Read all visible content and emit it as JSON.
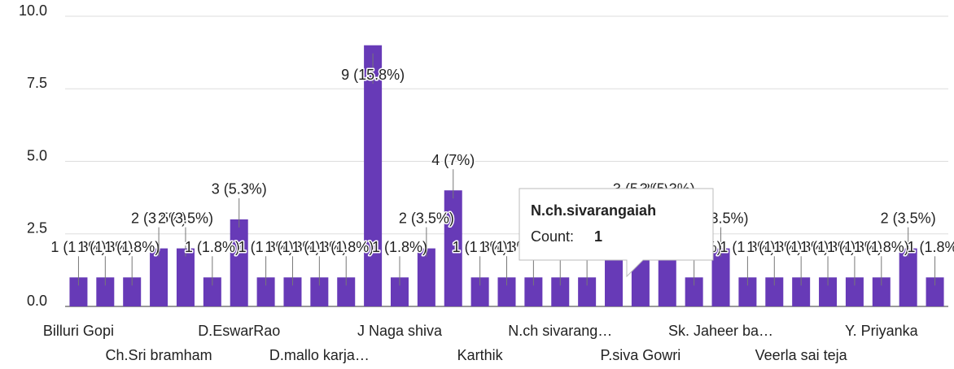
{
  "chart_data": {
    "type": "bar",
    "categories": [
      "Billuri Gopi",
      null,
      null,
      "Ch.Sri bramham",
      null,
      null,
      "D.EswarRao",
      null,
      null,
      "D.mallo karja…",
      null,
      null,
      "J Naga shiva",
      null,
      null,
      "Karthik",
      null,
      null,
      "N.ch sivarang…",
      null,
      null,
      "P.siva Gowri",
      null,
      null,
      "Sk. Jaheer ba…",
      null,
      null,
      "Veerla sai teja",
      null,
      null,
      "Y. Priyanka",
      null,
      null
    ],
    "values": [
      1,
      1,
      1,
      2,
      2,
      1,
      3,
      1,
      1,
      1,
      1,
      9,
      1,
      2,
      4,
      1,
      1,
      1,
      1,
      1,
      2,
      3,
      3,
      1,
      2,
      1,
      1,
      1,
      1,
      1,
      1,
      2,
      1
    ],
    "value_labels": [
      "1 (1.8%)",
      "1 (1.8%)",
      "1 (1.8%)",
      "2 (3.5%)",
      "2 (3.5%)",
      "1 (1.8%)",
      "3 (5.3%)",
      "1 (1.8%)",
      "1 (1.8%)",
      "1 (1.8%)",
      "1 (1.8%)",
      "9 (15.8%)",
      "1 (1.8%)",
      "2 (3.5%)",
      "4 (7%)",
      "1 (1.8%)",
      "1 (1.8%)",
      "1 (1.8%)",
      "1 (1.8%)",
      "1 (1.8%)",
      "2 (3.5%)",
      "3 (5.3%)",
      "3 (5.3%)",
      "1 (1.8%)",
      "2 (3.5%)",
      "1 (1.8%)",
      "1 (1.8%)",
      "1 (1.8%)",
      "1 (1.8%)",
      "1 (1.8%)",
      "1 (1.8%)",
      "2 (3.5%)",
      "1 (1.8%)"
    ],
    "color": "#673ab7",
    "ylim": [
      0,
      10
    ],
    "yticks": [
      {
        "value": 0,
        "label": "0.0"
      },
      {
        "value": 2.5,
        "label": "2.5"
      },
      {
        "value": 5,
        "label": "5.0"
      },
      {
        "value": 7.5,
        "label": "7.5"
      },
      {
        "value": 10,
        "label": "10.0"
      }
    ],
    "grid": true,
    "tooltip": {
      "title": "N.ch.sivarangaiah",
      "label": "Count:",
      "value": 1,
      "index": 19
    }
  }
}
